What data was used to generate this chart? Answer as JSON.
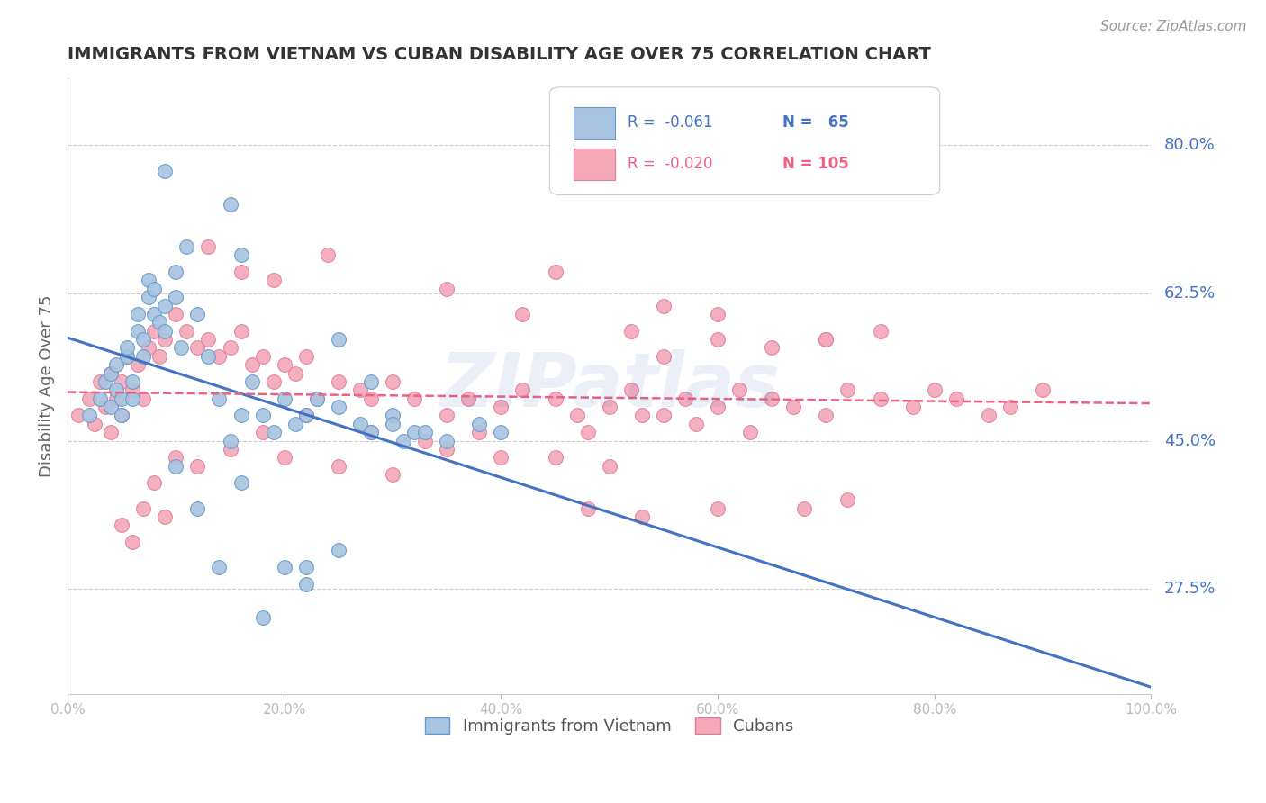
{
  "title": "IMMIGRANTS FROM VIETNAM VS CUBAN DISABILITY AGE OVER 75 CORRELATION CHART",
  "source": "Source: ZipAtlas.com",
  "ylabel": "Disability Age Over 75",
  "yticks": [
    0.275,
    0.45,
    0.625,
    0.8
  ],
  "ytick_labels": [
    "27.5%",
    "45.0%",
    "62.5%",
    "80.0%"
  ],
  "xlim": [
    0.0,
    1.0
  ],
  "ylim": [
    0.15,
    0.88
  ],
  "color_vietnam": "#a8c4e0",
  "color_cuba": "#f4a8b8",
  "color_trendline_vietnam": "#4472c4",
  "color_trendline_cuba": "#f06080",
  "color_ytick_labels": "#4472c4",
  "watermark": "ZIPatlas",
  "legend_label_vietnam": "Immigrants from Vietnam",
  "legend_label_cuba": "Cubans",
  "vietnam_x": [
    0.02,
    0.03,
    0.035,
    0.04,
    0.04,
    0.045,
    0.045,
    0.05,
    0.05,
    0.055,
    0.055,
    0.06,
    0.06,
    0.065,
    0.065,
    0.07,
    0.07,
    0.075,
    0.075,
    0.08,
    0.08,
    0.085,
    0.09,
    0.09,
    0.1,
    0.1,
    0.105,
    0.11,
    0.12,
    0.13,
    0.14,
    0.15,
    0.16,
    0.17,
    0.18,
    0.19,
    0.2,
    0.21,
    0.22,
    0.23,
    0.25,
    0.27,
    0.28,
    0.3,
    0.31,
    0.32,
    0.33,
    0.35,
    0.38,
    0.4,
    0.15,
    0.16,
    0.25,
    0.28,
    0.3,
    0.1,
    0.12,
    0.14,
    0.2,
    0.22,
    0.25,
    0.18,
    0.22,
    0.09,
    0.16
  ],
  "vietnam_y": [
    0.48,
    0.5,
    0.52,
    0.49,
    0.53,
    0.51,
    0.54,
    0.5,
    0.48,
    0.55,
    0.56,
    0.52,
    0.5,
    0.58,
    0.6,
    0.57,
    0.55,
    0.62,
    0.64,
    0.6,
    0.63,
    0.59,
    0.61,
    0.58,
    0.65,
    0.62,
    0.56,
    0.68,
    0.6,
    0.55,
    0.5,
    0.45,
    0.48,
    0.52,
    0.48,
    0.46,
    0.5,
    0.47,
    0.48,
    0.5,
    0.49,
    0.47,
    0.46,
    0.48,
    0.45,
    0.46,
    0.46,
    0.45,
    0.47,
    0.46,
    0.73,
    0.67,
    0.57,
    0.52,
    0.47,
    0.42,
    0.37,
    0.3,
    0.3,
    0.3,
    0.32,
    0.24,
    0.28,
    0.77,
    0.4
  ],
  "cuba_x": [
    0.01,
    0.02,
    0.025,
    0.03,
    0.035,
    0.04,
    0.04,
    0.045,
    0.05,
    0.05,
    0.055,
    0.06,
    0.065,
    0.07,
    0.075,
    0.08,
    0.085,
    0.09,
    0.1,
    0.11,
    0.12,
    0.13,
    0.14,
    0.15,
    0.16,
    0.17,
    0.18,
    0.19,
    0.2,
    0.21,
    0.22,
    0.23,
    0.25,
    0.27,
    0.28,
    0.3,
    0.32,
    0.35,
    0.37,
    0.4,
    0.42,
    0.45,
    0.47,
    0.5,
    0.52,
    0.55,
    0.57,
    0.6,
    0.62,
    0.65,
    0.67,
    0.7,
    0.72,
    0.75,
    0.78,
    0.8,
    0.82,
    0.85,
    0.87,
    0.9,
    0.15,
    0.2,
    0.25,
    0.3,
    0.35,
    0.4,
    0.45,
    0.5,
    0.08,
    0.1,
    0.12,
    0.18,
    0.22,
    0.28,
    0.33,
    0.38,
    0.48,
    0.53,
    0.58,
    0.63,
    0.35,
    0.42,
    0.55,
    0.6,
    0.7,
    0.75,
    0.05,
    0.06,
    0.07,
    0.09,
    0.55,
    0.52,
    0.6,
    0.65,
    0.7,
    0.13,
    0.16,
    0.19,
    0.24,
    0.45,
    0.48,
    0.53,
    0.6,
    0.68,
    0.72
  ],
  "cuba_y": [
    0.48,
    0.5,
    0.47,
    0.52,
    0.49,
    0.53,
    0.46,
    0.5,
    0.48,
    0.52,
    0.55,
    0.51,
    0.54,
    0.5,
    0.56,
    0.58,
    0.55,
    0.57,
    0.6,
    0.58,
    0.56,
    0.57,
    0.55,
    0.56,
    0.58,
    0.54,
    0.55,
    0.52,
    0.54,
    0.53,
    0.55,
    0.5,
    0.52,
    0.51,
    0.5,
    0.52,
    0.5,
    0.48,
    0.5,
    0.49,
    0.51,
    0.5,
    0.48,
    0.49,
    0.51,
    0.48,
    0.5,
    0.49,
    0.51,
    0.5,
    0.49,
    0.48,
    0.51,
    0.5,
    0.49,
    0.51,
    0.5,
    0.48,
    0.49,
    0.51,
    0.44,
    0.43,
    0.42,
    0.41,
    0.44,
    0.43,
    0.43,
    0.42,
    0.4,
    0.43,
    0.42,
    0.46,
    0.48,
    0.46,
    0.45,
    0.46,
    0.46,
    0.48,
    0.47,
    0.46,
    0.63,
    0.6,
    0.61,
    0.6,
    0.57,
    0.58,
    0.35,
    0.33,
    0.37,
    0.36,
    0.55,
    0.58,
    0.57,
    0.56,
    0.57,
    0.68,
    0.65,
    0.64,
    0.67,
    0.65,
    0.37,
    0.36,
    0.37,
    0.37,
    0.38
  ]
}
